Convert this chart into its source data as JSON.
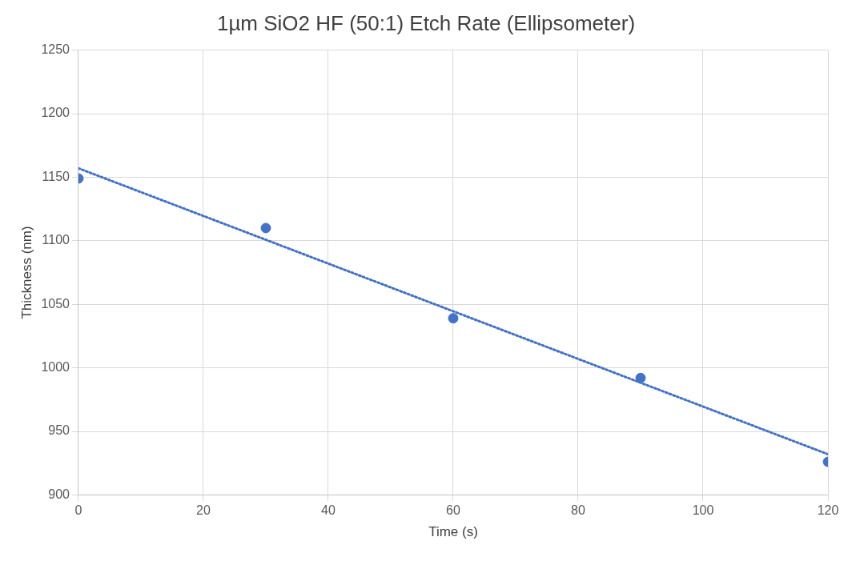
{
  "chart_data": {
    "type": "scatter",
    "title": "1µm SiO2 HF (50:1) Etch Rate (Ellipsometer)",
    "xlabel": "Time (s)",
    "ylabel": "Thickness (nm)",
    "x": [
      0,
      30,
      60,
      90,
      120
    ],
    "series": [
      {
        "type": "scatter",
        "color": "#4472c4",
        "values": [
          1149,
          1110,
          1039,
          992,
          926
        ],
        "marker": "circle"
      },
      {
        "type": "line",
        "color": "#4472c4",
        "x": [
          0,
          120
        ],
        "values": [
          1157,
          932
        ],
        "marker": "none",
        "line_style": "dotted"
      }
    ],
    "xlim": [
      0,
      120
    ],
    "xticks": [
      0,
      20,
      40,
      60,
      80,
      100,
      120
    ],
    "ylim": [
      900,
      1250
    ],
    "yticks": [
      900,
      950,
      1000,
      1050,
      1100,
      1150,
      1200,
      1250
    ],
    "grid": true,
    "legend": false
  }
}
